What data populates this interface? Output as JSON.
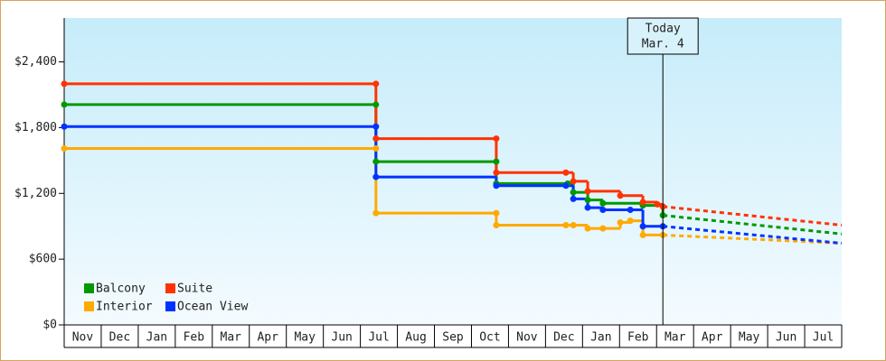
{
  "chart_data": {
    "type": "step-line",
    "annotation": {
      "x": 16.17,
      "lines": [
        "Today",
        "Mar. 4"
      ]
    },
    "xlim": [
      0,
      21
    ],
    "xticks": [
      {
        "value": 0,
        "label": "Nov"
      },
      {
        "value": 1,
        "label": "Dec"
      },
      {
        "value": 2,
        "label": "Jan"
      },
      {
        "value": 3,
        "label": "Feb"
      },
      {
        "value": 4,
        "label": "Mar"
      },
      {
        "value": 5,
        "label": "Apr"
      },
      {
        "value": 6,
        "label": "May"
      },
      {
        "value": 7,
        "label": "Jun"
      },
      {
        "value": 8,
        "label": "Jul"
      },
      {
        "value": 9,
        "label": "Aug"
      },
      {
        "value": 10,
        "label": "Sep"
      },
      {
        "value": 11,
        "label": "Oct"
      },
      {
        "value": 12,
        "label": "Nov"
      },
      {
        "value": 13,
        "label": "Dec"
      },
      {
        "value": 14,
        "label": "Jan"
      },
      {
        "value": 15,
        "label": "Feb"
      },
      {
        "value": 16,
        "label": "Mar"
      },
      {
        "value": 17,
        "label": "Apr"
      },
      {
        "value": 18,
        "label": "May"
      },
      {
        "value": 19,
        "label": "Jun"
      },
      {
        "value": 20,
        "label": "Jul"
      }
    ],
    "ylim": [
      0,
      2800
    ],
    "yticks": [
      {
        "value": 0,
        "label": "$0"
      },
      {
        "value": 600,
        "label": "$600"
      },
      {
        "value": 1200,
        "label": "$1,200"
      },
      {
        "value": 1800,
        "label": "$1,800"
      },
      {
        "value": 2400,
        "label": "$2,400"
      }
    ],
    "legend": "bottom-left",
    "series": [
      {
        "name": "Balcony",
        "color": "#009900",
        "x": [
          0,
          8.42,
          8.42,
          11.67,
          11.67,
          13.6,
          13.75,
          14.14,
          14.55,
          15.63,
          16.17
        ],
        "values": [
          2010,
          2010,
          1490,
          1490,
          1290,
          1290,
          1210,
          1140,
          1110,
          1090,
          1000
        ],
        "projection": {
          "x": [
            16.17,
            21
          ],
          "values": [
            1000,
            830
          ]
        }
      },
      {
        "name": "Suite",
        "color": "#ff3300",
        "x": [
          0,
          8.42,
          8.42,
          11.67,
          11.67,
          13.55,
          13.75,
          14.14,
          15.02,
          15.63,
          16.02,
          16.17
        ],
        "values": [
          2200,
          2200,
          1700,
          1700,
          1390,
          1390,
          1310,
          1220,
          1180,
          1120,
          1100,
          1080
        ],
        "projection": {
          "x": [
            16.17,
            21
          ],
          "values": [
            1080,
            910
          ]
        }
      },
      {
        "name": "Interior",
        "color": "#ffaa00",
        "x": [
          0,
          8.42,
          8.42,
          11.67,
          11.67,
          13.55,
          13.75,
          14.14,
          14.55,
          15.02,
          15.29,
          15.63,
          16.17
        ],
        "values": [
          1610,
          1610,
          1020,
          1020,
          910,
          910,
          910,
          880,
          880,
          935,
          950,
          820,
          820
        ],
        "projection": {
          "x": [
            16.17,
            21
          ],
          "values": [
            820,
            745
          ]
        }
      },
      {
        "name": "Ocean View",
        "color": "#0033ff",
        "x": [
          0,
          8.42,
          8.42,
          11.67,
          13.55,
          13.75,
          14.14,
          14.55,
          15.29,
          15.63,
          16.17
        ],
        "values": [
          1810,
          1810,
          1350,
          1270,
          1270,
          1150,
          1070,
          1050,
          1050,
          900,
          900
        ],
        "projection": {
          "x": [
            16.17,
            21
          ],
          "values": [
            900,
            745
          ]
        }
      }
    ]
  }
}
